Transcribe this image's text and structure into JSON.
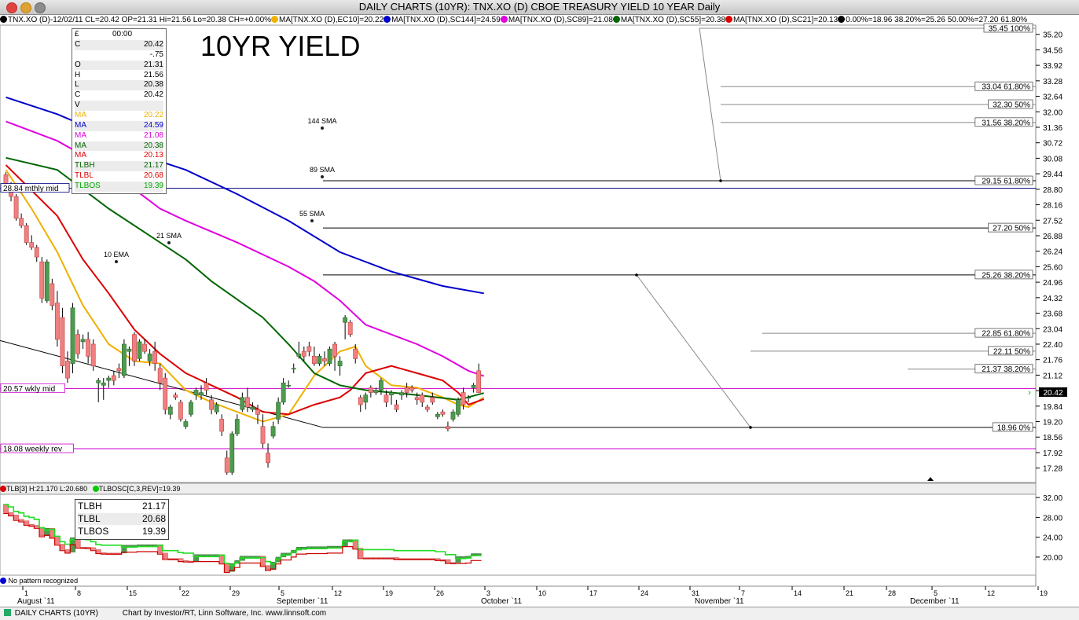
{
  "window": {
    "title": "DAILY CHARTS (10YR): TNX.XO (D) CBOE TREASURY YIELD 10 YEAR Daily"
  },
  "legend": [
    {
      "text": "TNX.XO (D)-12/02/11 CL=20.42 OP=21.31 Hi=21.56 Lo=20.38 CH=+0.00%",
      "color": "#000000"
    },
    {
      "text": "MA[TNX.XO (D),EC10]=20.22",
      "color": "#f0b000"
    },
    {
      "text": "MA[TNX.XO (D),SC144]=24.59",
      "color": "#0000cc"
    },
    {
      "text": "MA[TNX.XO (D),SC89]=21.08",
      "color": "#e000e0"
    },
    {
      "text": "MA[TNX.XO (D),SC55]=20.38",
      "color": "#006600"
    },
    {
      "text": "MA[TNX.XO (D),SC21]=20.13",
      "color": "#dd0000"
    },
    {
      "text": "0.00%=18.96 38.20%=25.26 50.00%=27.20 61.80%",
      "color": "#000000"
    }
  ],
  "big_title": "10YR YIELD",
  "data_window": {
    "header_left": "£",
    "header_time": "00:00",
    "rows": [
      {
        "k": "C",
        "v": "20.42",
        "color": "#000000"
      },
      {
        "k": "",
        "v": "-.75",
        "color": "#000000"
      },
      {
        "k": "O",
        "v": "21.31",
        "color": "#000000"
      },
      {
        "k": "H",
        "v": "21.56",
        "color": "#000000"
      },
      {
        "k": "L",
        "v": "20.38",
        "color": "#000000"
      },
      {
        "k": "C",
        "v": "20.42",
        "color": "#000000"
      },
      {
        "k": "V",
        "v": "",
        "color": "#000000"
      },
      {
        "k": "MA",
        "v": "20.22",
        "color": "#f0b000"
      },
      {
        "k": "MA",
        "v": "24.59",
        "color": "#0000cc"
      },
      {
        "k": "MA",
        "v": "21.08",
        "color": "#e000e0"
      },
      {
        "k": "MA",
        "v": "20.38",
        "color": "#006600"
      },
      {
        "k": "MA",
        "v": "20.13",
        "color": "#dd0000"
      },
      {
        "k": "TLBH",
        "v": "21.17",
        "color": "#006600"
      },
      {
        "k": "TLBL",
        "v": "20.68",
        "color": "#dd0000"
      },
      {
        "k": "TLBOS",
        "v": "19.39",
        "color": "#00aa00"
      }
    ]
  },
  "lower_legend": {
    "tlb": "TLB[3] H:21.170 L:20.680",
    "tlbosc": "TLBOSC[C,3,REV]=19.39"
  },
  "lower_box": [
    {
      "k": "TLBH",
      "v": "21.17"
    },
    {
      "k": "TLBL",
      "v": "20.68"
    },
    {
      "k": "TLBOS",
      "v": "19.39"
    }
  ],
  "pattern_text": "No pattern recognized",
  "footer": {
    "left": "DAILY CHARTS (10YR)",
    "credit": "Chart by Investor/RT, Linn Software, Inc. www.linnsoft.com"
  },
  "chart_data": {
    "type": "candlestick",
    "title": "DAILY CHARTS (10YR): TNX.XO (D) CBOE TREASURY YIELD 10 YEAR Daily",
    "ylim": [
      16.8,
      35.3
    ],
    "yticks": [
      "35.20",
      "34.56",
      "33.92",
      "33.28",
      "32.64",
      "32.00",
      "31.36",
      "30.72",
      "30.08",
      "29.44",
      "28.80",
      "28.16",
      "27.52",
      "26.88",
      "26.24",
      "25.60",
      "24.96",
      "24.32",
      "23.68",
      "23.04",
      "22.40",
      "21.76",
      "21.12",
      "20.48",
      "19.84",
      "19.20",
      "18.56",
      "17.92",
      "17.28"
    ],
    "x_day_labels": [
      "1",
      "8",
      "15",
      "22",
      "29",
      "5",
      "12",
      "19",
      "26",
      "3",
      "10",
      "17",
      "24",
      "31",
      "7",
      "14",
      "21",
      "28",
      "5",
      "12",
      "19"
    ],
    "x_month_labels": [
      "August `11",
      "September `11",
      "October `11",
      "November `11",
      "December `11"
    ],
    "last_price_tag": "20.42",
    "candles": [
      [
        29.4,
        29.5,
        28.9,
        29.0
      ],
      [
        29.0,
        29.1,
        28.3,
        28.5
      ],
      [
        28.5,
        28.6,
        27.5,
        27.6
      ],
      [
        27.6,
        27.8,
        27.2,
        27.3
      ],
      [
        27.3,
        27.4,
        26.5,
        26.6
      ],
      [
        26.6,
        26.9,
        26.3,
        26.4
      ],
      [
        26.4,
        26.5,
        25.8,
        26.0
      ],
      [
        25.8,
        26.0,
        24.1,
        24.3
      ],
      [
        24.2,
        25.9,
        24.1,
        25.8
      ],
      [
        24.9,
        25.1,
        23.8,
        24.0
      ],
      [
        24.1,
        24.6,
        22.3,
        22.6
      ],
      [
        23.5,
        23.9,
        21.2,
        21.5
      ],
      [
        21.7,
        22.1,
        20.8,
        21.0
      ],
      [
        21.6,
        24.1,
        21.2,
        23.9
      ],
      [
        22.8,
        23.0,
        21.8,
        22.0
      ],
      [
        22.5,
        22.8,
        22.2,
        22.6
      ],
      [
        22.6,
        22.9,
        21.6,
        21.9
      ],
      [
        22.4,
        22.6,
        21.3,
        21.5
      ],
      [
        20.8,
        21.0,
        20.0,
        20.9
      ],
      [
        20.7,
        21.0,
        20.1,
        20.8
      ],
      [
        20.9,
        21.1,
        20.6,
        21.0
      ],
      [
        21.1,
        21.3,
        20.7,
        20.9
      ],
      [
        21.4,
        21.6,
        21.0,
        21.3
      ],
      [
        21.1,
        22.6,
        21.0,
        22.4
      ],
      [
        22.1,
        22.3,
        21.5,
        22.2
      ],
      [
        22.8,
        22.9,
        21.5,
        21.7
      ],
      [
        21.8,
        22.6,
        21.7,
        22.5
      ],
      [
        22.4,
        22.6,
        22.0,
        22.1
      ],
      [
        21.7,
        22.2,
        21.5,
        22.0
      ],
      [
        22.1,
        22.5,
        21.3,
        21.6
      ],
      [
        21.4,
        21.6,
        20.5,
        20.8
      ],
      [
        21.0,
        21.2,
        19.5,
        19.7
      ],
      [
        19.5,
        19.9,
        19.3,
        19.8
      ],
      [
        20.3,
        20.4,
        20.1,
        20.2
      ],
      [
        20.0,
        20.1,
        19.2,
        19.3
      ],
      [
        19.0,
        19.3,
        18.9,
        19.2
      ],
      [
        19.5,
        20.1,
        19.4,
        20.0
      ],
      [
        20.3,
        20.6,
        20.1,
        20.5
      ],
      [
        20.3,
        20.7,
        20.1,
        20.4
      ],
      [
        20.8,
        21.0,
        20.3,
        20.5
      ],
      [
        20.1,
        20.3,
        19.5,
        19.7
      ],
      [
        19.6,
        20.0,
        19.5,
        19.9
      ],
      [
        19.3,
        19.5,
        18.6,
        18.8
      ],
      [
        17.7,
        18.0,
        17.0,
        17.1
      ],
      [
        17.1,
        18.8,
        17.0,
        18.7
      ],
      [
        18.7,
        19.5,
        18.6,
        19.3
      ],
      [
        19.7,
        20.4,
        19.6,
        20.2
      ],
      [
        20.2,
        20.6,
        19.6,
        19.8
      ],
      [
        19.7,
        20.0,
        19.6,
        19.8
      ],
      [
        19.7,
        19.9,
        19.1,
        19.5
      ],
      [
        19.0,
        19.5,
        18.1,
        18.3
      ],
      [
        17.9,
        18.3,
        17.3,
        17.5
      ],
      [
        18.6,
        19.2,
        18.5,
        19.0
      ],
      [
        19.3,
        20.2,
        19.1,
        20.0
      ],
      [
        20.0,
        21.0,
        19.9,
        20.8
      ],
      [
        20.7,
        20.9,
        20.6,
        20.7
      ],
      [
        21.4,
        21.6,
        21.2,
        21.4
      ],
      [
        21.9,
        22.5,
        21.8,
        22.0
      ],
      [
        22.1,
        22.3,
        21.7,
        21.9
      ],
      [
        22.3,
        22.5,
        21.9,
        22.1
      ],
      [
        21.9,
        22.3,
        21.5,
        21.6
      ],
      [
        21.6,
        22.0,
        21.5,
        21.9
      ],
      [
        21.8,
        22.1,
        21.5,
        21.7
      ],
      [
        21.6,
        22.3,
        21.5,
        22.2
      ],
      [
        22.4,
        22.5,
        21.3,
        21.9
      ],
      [
        21.5,
        21.9,
        21.1,
        21.7
      ],
      [
        23.3,
        23.6,
        22.6,
        23.5
      ],
      [
        23.3,
        23.4,
        22.7,
        22.8
      ],
      [
        22.2,
        22.4,
        21.6,
        21.8
      ],
      [
        20.2,
        20.3,
        19.6,
        19.9
      ],
      [
        20.0,
        20.4,
        19.7,
        20.3
      ],
      [
        20.6,
        20.7,
        20.2,
        20.4
      ],
      [
        20.4,
        20.6,
        20.3,
        20.5
      ],
      [
        20.5,
        21.0,
        20.3,
        20.9
      ],
      [
        20.3,
        20.5,
        19.8,
        20.0
      ],
      [
        20.3,
        20.5,
        19.9,
        20.4
      ],
      [
        19.9,
        20.1,
        19.6,
        19.7
      ],
      [
        20.3,
        20.5,
        20.1,
        20.4
      ],
      [
        20.6,
        20.8,
        20.2,
        20.4
      ],
      [
        20.6,
        20.7,
        20.4,
        20.5
      ],
      [
        20.2,
        20.4,
        19.9,
        20.1
      ],
      [
        20.3,
        20.4,
        19.8,
        20.0
      ],
      [
        19.8,
        19.9,
        19.6,
        19.7
      ],
      [
        20.2,
        20.4,
        19.9,
        20.0
      ],
      [
        19.4,
        19.6,
        19.3,
        19.5
      ],
      [
        19.6,
        19.7,
        19.4,
        19.5
      ],
      [
        19.0,
        19.2,
        18.8,
        18.9
      ],
      [
        19.3,
        19.7,
        19.2,
        19.6
      ],
      [
        19.5,
        20.2,
        19.4,
        20.1
      ],
      [
        20.4,
        20.6,
        19.7,
        19.9
      ],
      [
        20.2,
        20.3,
        20.0,
        20.2
      ],
      [
        20.6,
        20.8,
        20.4,
        20.7
      ],
      [
        21.3,
        21.6,
        20.4,
        20.4
      ]
    ],
    "moving_averages": [
      {
        "name": "MA[TNX.XO (D),EC10]",
        "label": "10 EMA",
        "color": "#f0b000",
        "points": [
          [
            0,
            29.6
          ],
          [
            5,
            28.0
          ],
          [
            10,
            26.2
          ],
          [
            15,
            24.0
          ],
          [
            20,
            22.4
          ],
          [
            25,
            21.7
          ],
          [
            30,
            21.6
          ],
          [
            35,
            20.5
          ],
          [
            40,
            20.0
          ],
          [
            45,
            19.6
          ],
          [
            50,
            19.2
          ],
          [
            55,
            19.5
          ],
          [
            60,
            21.1
          ],
          [
            65,
            22.1
          ],
          [
            68,
            22.3
          ],
          [
            70,
            21.5
          ],
          [
            75,
            20.7
          ],
          [
            80,
            20.6
          ],
          [
            85,
            20.2
          ],
          [
            88,
            19.9
          ],
          [
            90,
            19.8
          ],
          [
            93,
            20.2
          ]
        ]
      },
      {
        "name": "MA[TNX.XO (D),SC21]",
        "label": "21 SMA",
        "color": "#dd0000",
        "points": [
          [
            0,
            29.8
          ],
          [
            10,
            27.7
          ],
          [
            15,
            25.9
          ],
          [
            20,
            24.5
          ],
          [
            25,
            23.0
          ],
          [
            30,
            22.0
          ],
          [
            35,
            21.2
          ],
          [
            40,
            20.7
          ],
          [
            45,
            20.2
          ],
          [
            50,
            19.6
          ],
          [
            55,
            19.5
          ],
          [
            60,
            19.9
          ],
          [
            65,
            20.2
          ],
          [
            67,
            20.5
          ],
          [
            70,
            21.2
          ],
          [
            75,
            21.5
          ],
          [
            80,
            21.2
          ],
          [
            85,
            20.9
          ],
          [
            88,
            20.4
          ],
          [
            90,
            19.9
          ],
          [
            93,
            20.13
          ]
        ]
      },
      {
        "name": "MA[TNX.XO (D),SC55]",
        "label": "55 SMA",
        "color": "#006600",
        "points": [
          [
            0,
            30.1
          ],
          [
            10,
            29.6
          ],
          [
            20,
            28.0
          ],
          [
            30,
            26.6
          ],
          [
            35,
            25.9
          ],
          [
            40,
            25.0
          ],
          [
            50,
            23.5
          ],
          [
            55,
            22.4
          ],
          [
            60,
            21.2
          ],
          [
            65,
            20.7
          ],
          [
            70,
            20.5
          ],
          [
            80,
            20.3
          ],
          [
            88,
            20.1
          ],
          [
            93,
            20.38
          ]
        ]
      },
      {
        "name": "MA[TNX.XO (D),SC89]",
        "label": "89 SMA",
        "color": "#e000e0",
        "points": [
          [
            0,
            31.6
          ],
          [
            10,
            30.8
          ],
          [
            20,
            29.6
          ],
          [
            30,
            28.0
          ],
          [
            35,
            27.5
          ],
          [
            45,
            26.6
          ],
          [
            55,
            25.6
          ],
          [
            60,
            25.0
          ],
          [
            65,
            24.2
          ],
          [
            70,
            23.2
          ],
          [
            80,
            22.4
          ],
          [
            85,
            21.9
          ],
          [
            90,
            21.3
          ],
          [
            93,
            21.08
          ]
        ]
      },
      {
        "name": "MA[TNX.XO (D),SC144]",
        "label": "144 SMA",
        "color": "#0000cc",
        "points": [
          [
            0,
            32.6
          ],
          [
            10,
            31.9
          ],
          [
            20,
            31.0
          ],
          [
            25,
            30.3
          ],
          [
            35,
            29.6
          ],
          [
            45,
            28.6
          ],
          [
            55,
            27.5
          ],
          [
            65,
            26.2
          ],
          [
            75,
            25.4
          ],
          [
            85,
            24.8
          ],
          [
            93,
            24.5
          ]
        ]
      }
    ],
    "sma_labels": [
      "144 SMA",
      "89 SMA",
      "55 SMA",
      "21 SMA",
      "10 EMA"
    ],
    "fibonacci_levels": [
      {
        "label": "35.45 100%",
        "value": 35.45
      },
      {
        "label": "33.04 61.80%",
        "value": 33.04
      },
      {
        "label": "32.30 50%",
        "value": 32.3
      },
      {
        "label": "31.56 38.20%",
        "value": 31.56
      },
      {
        "label": "29.15 61.80%",
        "value": 29.15
      },
      {
        "label": "27.20 50%",
        "value": 27.2
      },
      {
        "label": "25.26 38.20%",
        "value": 25.26
      },
      {
        "label": "22.85 61.80%",
        "value": 22.85
      },
      {
        "label": "22.11 50%",
        "value": 22.11
      },
      {
        "label": "21.37 38.20%",
        "value": 21.37
      },
      {
        "label": "18.96 0%",
        "value": 18.96
      }
    ],
    "horizontal_lines": [
      {
        "label": "28.84 mthly mid",
        "value": 28.84,
        "color": "#000080"
      },
      {
        "label": "20.57 wkly mid",
        "value": 20.57,
        "color": "#cc00cc"
      },
      {
        "label": "18.08 weekly rev",
        "value": 18.08,
        "color": "#cc00cc"
      }
    ],
    "lower_panel": {
      "yticks": [
        "32.00",
        "28.00",
        "24.00",
        "20.00"
      ],
      "ylim": [
        16.5,
        32.5
      ]
    }
  }
}
